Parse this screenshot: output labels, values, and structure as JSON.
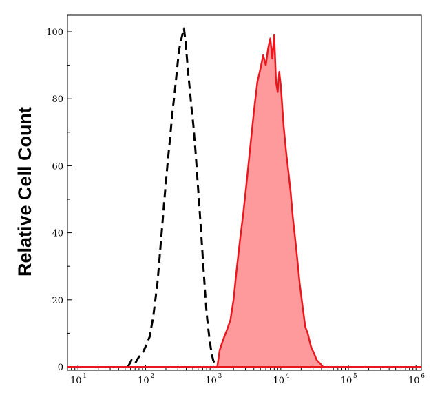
{
  "chart_data": {
    "type": "area",
    "title": "",
    "xlabel": "",
    "ylabel": "Relative Cell Count",
    "xscale": "log",
    "xlim": [
      7,
      1200000
    ],
    "ylim": [
      0,
      105
    ],
    "grid": false,
    "legend": "none",
    "y_ticks": [
      0,
      20,
      40,
      60,
      80,
      100
    ],
    "x_ticks": [
      {
        "value": 10,
        "base": "10",
        "exp": "1"
      },
      {
        "value": 100,
        "base": "10",
        "exp": "2"
      },
      {
        "value": 1000,
        "base": "10",
        "exp": "3"
      },
      {
        "value": 10000,
        "base": "10",
        "exp": "4"
      },
      {
        "value": 100000,
        "base": "10",
        "exp": "5"
      },
      {
        "value": 1000000,
        "base": "10",
        "exp": "6"
      }
    ],
    "series": [
      {
        "style": "dashed",
        "color": "#000000",
        "fill": "none",
        "x": [
          55,
          62,
          70,
          80,
          90,
          100,
          115,
          130,
          150,
          170,
          190,
          210,
          230,
          250,
          270,
          290,
          310,
          330,
          350,
          370,
          390,
          410,
          430,
          450,
          480,
          510,
          550,
          600,
          650,
          700,
          750,
          800,
          850,
          900,
          950,
          1000,
          1050,
          1100
        ],
        "y": [
          0,
          2,
          1,
          3,
          4,
          6,
          9,
          15,
          25,
          38,
          50,
          60,
          68,
          76,
          82,
          88,
          94,
          97,
          99,
          101,
          97,
          92,
          87,
          83,
          77,
          72,
          64,
          53,
          43,
          33,
          24,
          16,
          11,
          7,
          4,
          2,
          1,
          0
        ]
      },
      {
        "style": "solid",
        "color": "#e8181e",
        "fill": "#ff9a9c",
        "x": [
          1150,
          1250,
          1400,
          1600,
          1800,
          2000,
          2200,
          2500,
          2800,
          3200,
          3600,
          4000,
          4500,
          5000,
          5500,
          6000,
          6500,
          7000,
          7500,
          8000,
          8500,
          9000,
          9500,
          10000,
          11000,
          12000,
          13000,
          14000,
          15000,
          17000,
          19000,
          21000,
          23000,
          25000,
          28000,
          31000,
          34000,
          38000,
          42000
        ],
        "y": [
          0,
          5,
          8,
          11,
          14,
          20,
          28,
          38,
          46,
          57,
          67,
          76,
          85,
          89,
          93,
          90,
          95,
          98,
          92,
          99,
          85,
          82,
          88,
          84,
          72,
          64,
          58,
          52,
          45,
          35,
          25,
          18,
          12,
          10,
          6,
          4,
          2,
          1,
          0
        ]
      }
    ]
  }
}
